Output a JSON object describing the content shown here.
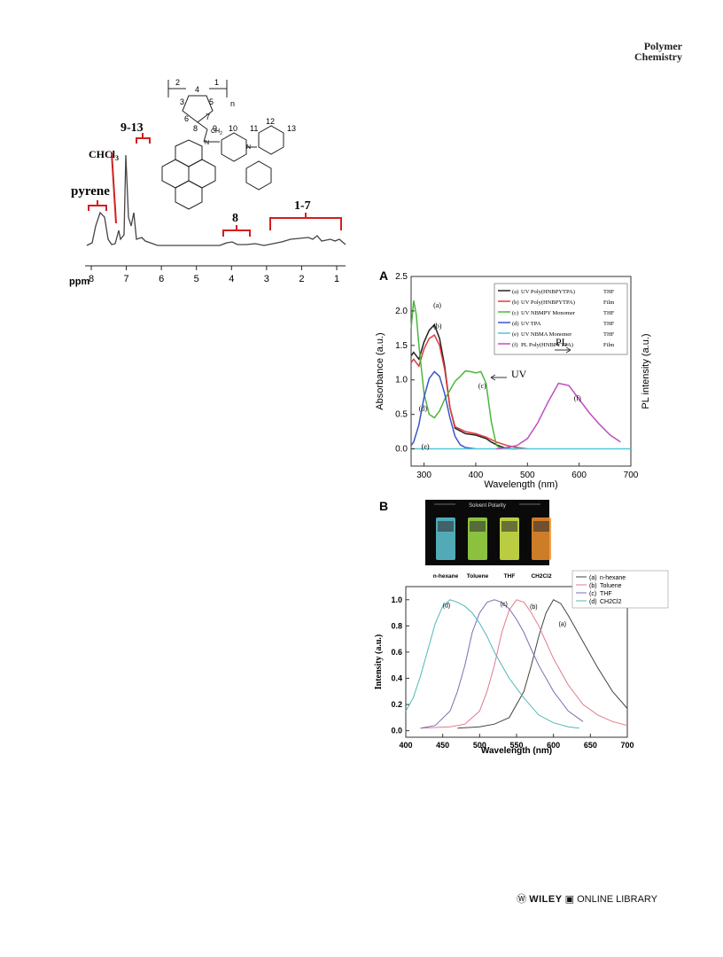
{
  "header": {
    "journal_line1": "Polymer",
    "journal_line2": "Chemistry"
  },
  "footer": {
    "publisher": "WILEY",
    "library": "ONLINE LIBRARY"
  },
  "nmr": {
    "axis_unit": "ppm",
    "ticks": [
      "8",
      "7",
      "6",
      "5",
      "4",
      "3",
      "2",
      "1"
    ],
    "labels": {
      "pyrene": "pyrene",
      "chcl3": "CHCl",
      "chcl3_sub": "3",
      "g913": "9-13",
      "g8": "8",
      "g17": "1-7"
    },
    "structure_numbers": [
      "2",
      "4",
      "1",
      "3",
      "5",
      "7",
      "6",
      "n",
      "8",
      "9",
      "10",
      "11",
      "12",
      "13"
    ],
    "structure_ch2": "CH",
    "structure_ch2_sub": "2",
    "structure_n": "N"
  },
  "panelA": {
    "panel_label": "A",
    "chart_data": {
      "type": "line",
      "xlabel": "Wavelength (nm)",
      "ylabel_left": "Absorbance (a.u.)",
      "ylabel_right": "PL intensity (a.u.)",
      "xlim": [
        275,
        700
      ],
      "ylim": [
        -0.25,
        2.5
      ],
      "x_ticks": [
        "300",
        "400",
        "500",
        "600",
        "700"
      ],
      "y_ticks": [
        "0.0",
        "0.5",
        "1.0",
        "1.5",
        "2.0",
        "2.5"
      ],
      "legend_position": "top-right",
      "legend": [
        {
          "id": "(a)",
          "text": "UV Poly(HNBPYTPA)",
          "medium": "THF",
          "color": "#222222"
        },
        {
          "id": "(b)",
          "text": "UV Poly(HNBPYTPA)",
          "medium": "Film",
          "color": "#e23b3b"
        },
        {
          "id": "(c)",
          "text": "UV NBMPY Monomer",
          "medium": "THF",
          "color": "#4cb53f"
        },
        {
          "id": "(d)",
          "text": "UV TPA",
          "medium": "THF",
          "color": "#3a55c8"
        },
        {
          "id": "(e)",
          "text": "UV NBMA Monomer",
          "medium": "THF",
          "color": "#53c7d9"
        },
        {
          "id": "(f)",
          "text": "PL  Poly(HNBPYTPA)",
          "medium": "Film",
          "color": "#c04fc0"
        }
      ],
      "annotations": {
        "uv": "UV",
        "pl": "PL"
      },
      "series": [
        {
          "label": "(a)",
          "color": "#222222",
          "x": [
            275,
            280,
            290,
            300,
            310,
            320,
            330,
            340,
            350,
            360,
            380,
            400,
            420,
            430,
            440,
            450,
            460,
            470,
            480
          ],
          "y": [
            1.35,
            1.4,
            1.3,
            1.55,
            1.72,
            1.8,
            1.6,
            1.2,
            0.6,
            0.3,
            0.22,
            0.2,
            0.15,
            0.1,
            0.06,
            0.03,
            0.01,
            0.0,
            0.0
          ]
        },
        {
          "label": "(b)",
          "color": "#e23b3b",
          "x": [
            275,
            280,
            290,
            300,
            310,
            320,
            330,
            340,
            350,
            360,
            380,
            400,
            420,
            440,
            460,
            480,
            500
          ],
          "y": [
            1.25,
            1.3,
            1.2,
            1.45,
            1.6,
            1.65,
            1.5,
            1.15,
            0.6,
            0.32,
            0.25,
            0.22,
            0.17,
            0.1,
            0.05,
            0.02,
            0.0
          ]
        },
        {
          "label": "(c)",
          "color": "#4cb53f",
          "x": [
            275,
            280,
            285,
            290,
            300,
            310,
            320,
            330,
            340,
            350,
            360,
            370,
            380,
            390,
            400,
            410,
            420,
            430,
            440,
            450
          ],
          "y": [
            1.75,
            2.15,
            1.95,
            1.5,
            0.8,
            0.5,
            0.45,
            0.55,
            0.72,
            0.85,
            0.98,
            1.05,
            1.13,
            1.12,
            1.1,
            1.12,
            0.95,
            0.4,
            0.05,
            0.0
          ]
        },
        {
          "label": "(d)",
          "color": "#3a55c8",
          "x": [
            275,
            280,
            290,
            300,
            310,
            320,
            330,
            340,
            350,
            360,
            370,
            380,
            390,
            400
          ],
          "y": [
            0.05,
            0.1,
            0.35,
            0.75,
            1.02,
            1.12,
            1.05,
            0.8,
            0.45,
            0.18,
            0.06,
            0.02,
            0.01,
            0.0
          ]
        },
        {
          "label": "(e)",
          "color": "#53c7d9",
          "x": [
            275,
            400,
            500,
            600,
            700
          ],
          "y": [
            0.0,
            0.0,
            0.0,
            0.0,
            0.0
          ]
        },
        {
          "label": "(f)",
          "color": "#c04fc0",
          "x": [
            440,
            460,
            480,
            500,
            520,
            540,
            560,
            580,
            600,
            620,
            640,
            660,
            680
          ],
          "y": [
            0.0,
            0.02,
            0.05,
            0.15,
            0.38,
            0.68,
            0.95,
            0.92,
            0.72,
            0.52,
            0.35,
            0.2,
            0.1
          ]
        }
      ]
    }
  },
  "panelB": {
    "panel_label": "B",
    "solvent_polarity_label": "Solvent Polarity",
    "vials": [
      {
        "name": "n-hexane",
        "color": "#5fc7d6"
      },
      {
        "name": "Toluene",
        "color": "#a3e24a"
      },
      {
        "name": "THF",
        "color": "#d9f04a"
      },
      {
        "name": "CH2Cl2",
        "color": "#f0902e"
      }
    ],
    "chart_data": {
      "type": "line",
      "xlabel": "Wavelength (nm)",
      "ylabel": "Intensity (a.u.)",
      "xlim": [
        400,
        700
      ],
      "ylim": [
        -0.05,
        1.1
      ],
      "x_ticks": [
        "400",
        "450",
        "500",
        "550",
        "600",
        "650",
        "700"
      ],
      "y_ticks": [
        "0.0",
        "0.2",
        "0.4",
        "0.6",
        "0.8",
        "1.0"
      ],
      "legend_position": "top-right",
      "legend": [
        {
          "id": "(a)",
          "text": "n-hexane",
          "color": "#444444"
        },
        {
          "id": "(b)",
          "text": "Toluene",
          "color": "#e07a8a"
        },
        {
          "id": "(c)",
          "text": "THF",
          "color": "#7a6fb0"
        },
        {
          "id": "(d)",
          "text": "CH2Cl2",
          "color": "#4fb8b8"
        }
      ],
      "series": [
        {
          "label": "(a)",
          "color": "#444444",
          "x": [
            470,
            500,
            520,
            540,
            560,
            570,
            580,
            590,
            600,
            610,
            620,
            640,
            660,
            680,
            700
          ],
          "y": [
            0.02,
            0.03,
            0.05,
            0.1,
            0.3,
            0.5,
            0.72,
            0.9,
            1.0,
            0.97,
            0.88,
            0.68,
            0.48,
            0.3,
            0.17
          ]
        },
        {
          "label": "(b)",
          "color": "#e07a8a",
          "x": [
            420,
            460,
            480,
            500,
            510,
            520,
            530,
            540,
            550,
            560,
            570,
            580,
            600,
            620,
            640,
            660,
            680,
            700
          ],
          "y": [
            0.02,
            0.03,
            0.05,
            0.15,
            0.3,
            0.5,
            0.75,
            0.92,
            1.0,
            0.98,
            0.9,
            0.8,
            0.55,
            0.35,
            0.2,
            0.12,
            0.07,
            0.04
          ]
        },
        {
          "label": "(c)",
          "color": "#7a6fb0",
          "x": [
            420,
            440,
            460,
            470,
            480,
            490,
            500,
            510,
            520,
            530,
            540,
            550,
            560,
            570,
            580,
            600,
            620,
            640
          ],
          "y": [
            0.02,
            0.04,
            0.15,
            0.3,
            0.5,
            0.75,
            0.9,
            0.98,
            1.0,
            0.98,
            0.93,
            0.85,
            0.75,
            0.62,
            0.5,
            0.3,
            0.15,
            0.07
          ]
        },
        {
          "label": "(d)",
          "color": "#4fb8b8",
          "x": [
            400,
            410,
            420,
            430,
            440,
            450,
            460,
            470,
            480,
            490,
            500,
            510,
            520,
            530,
            540,
            560,
            580,
            600,
            620,
            635
          ],
          "y": [
            0.15,
            0.25,
            0.42,
            0.62,
            0.82,
            0.95,
            1.0,
            0.98,
            0.95,
            0.9,
            0.82,
            0.72,
            0.6,
            0.5,
            0.4,
            0.25,
            0.12,
            0.06,
            0.03,
            0.02
          ]
        }
      ]
    }
  }
}
